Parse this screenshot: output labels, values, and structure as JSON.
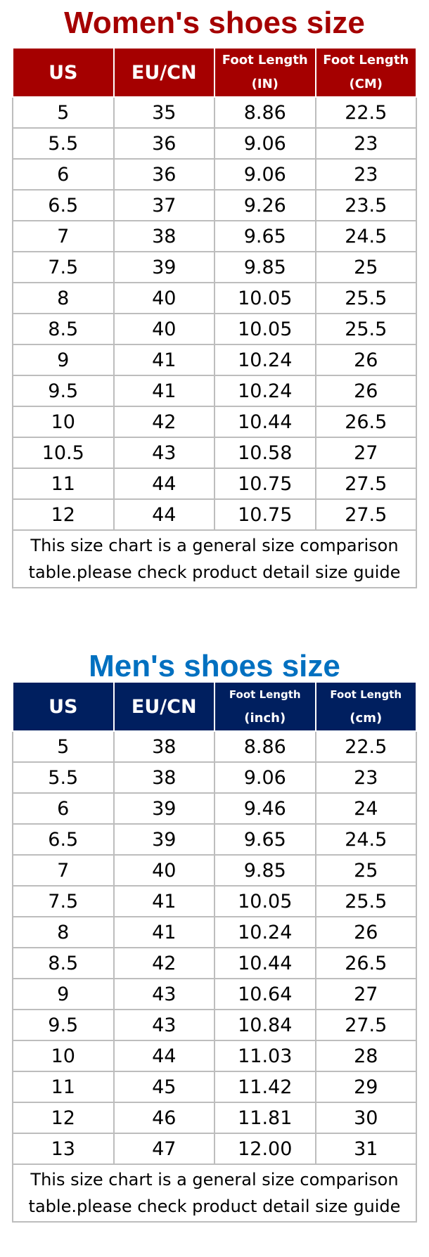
{
  "women": {
    "title": "Women's shoes size",
    "headers": {
      "us": "US",
      "eu": "EU/CN",
      "in_1": "Foot Length",
      "in_2": "(IN)",
      "cm_1": "Foot Length",
      "cm_2": "(CM)"
    },
    "rows": [
      [
        "5",
        "35",
        "8.86",
        "22.5"
      ],
      [
        "5.5",
        "36",
        "9.06",
        "23"
      ],
      [
        "6",
        "36",
        "9.06",
        "23"
      ],
      [
        "6.5",
        "37",
        "9.26",
        "23.5"
      ],
      [
        "7",
        "38",
        "9.65",
        "24.5"
      ],
      [
        "7.5",
        "39",
        "9.85",
        "25"
      ],
      [
        "8",
        "40",
        "10.05",
        "25.5"
      ],
      [
        "8.5",
        "40",
        "10.05",
        "25.5"
      ],
      [
        "9",
        "41",
        "10.24",
        "26"
      ],
      [
        "9.5",
        "41",
        "10.24",
        "26"
      ],
      [
        "10",
        "42",
        "10.44",
        "26.5"
      ],
      [
        "10.5",
        "43",
        "10.58",
        "27"
      ],
      [
        "11",
        "44",
        "10.75",
        "27.5"
      ],
      [
        "12",
        "44",
        "10.75",
        "27.5"
      ]
    ],
    "note_1": "This size chart is a general size comparison",
    "note_2": "table.please check product detail size guide"
  },
  "men": {
    "title": "Men's shoes size",
    "headers": {
      "us": "US",
      "eu": "EU/CN",
      "in_1": "Foot Length",
      "in_2": "(inch)",
      "cm_1": "Foot Length",
      "cm_2": "(cm)"
    },
    "rows": [
      [
        "5",
        "38",
        "8.86",
        "22.5"
      ],
      [
        "5.5",
        "38",
        "9.06",
        "23"
      ],
      [
        "6",
        "39",
        "9.46",
        "24"
      ],
      [
        "6.5",
        "39",
        "9.65",
        "24.5"
      ],
      [
        "7",
        "40",
        "9.85",
        "25"
      ],
      [
        "7.5",
        "41",
        "10.05",
        "25.5"
      ],
      [
        "8",
        "41",
        "10.24",
        "26"
      ],
      [
        "8.5",
        "42",
        "10.44",
        "26.5"
      ],
      [
        "9",
        "43",
        "10.64",
        "27"
      ],
      [
        "9.5",
        "43",
        "10.84",
        "27.5"
      ],
      [
        "10",
        "44",
        "11.03",
        "28"
      ],
      [
        "11",
        "45",
        "11.42",
        "29"
      ],
      [
        "12",
        "46",
        "11.81",
        "30"
      ],
      [
        "13",
        "47",
        "12.00",
        "31"
      ]
    ],
    "note_1": "This size chart is a general size comparison",
    "note_2": "table.please check product detail size guide"
  },
  "colors": {
    "women_header": "#a50000",
    "men_header": "#001f5f",
    "women_title": "#a50000",
    "men_title": "#0070c0"
  }
}
